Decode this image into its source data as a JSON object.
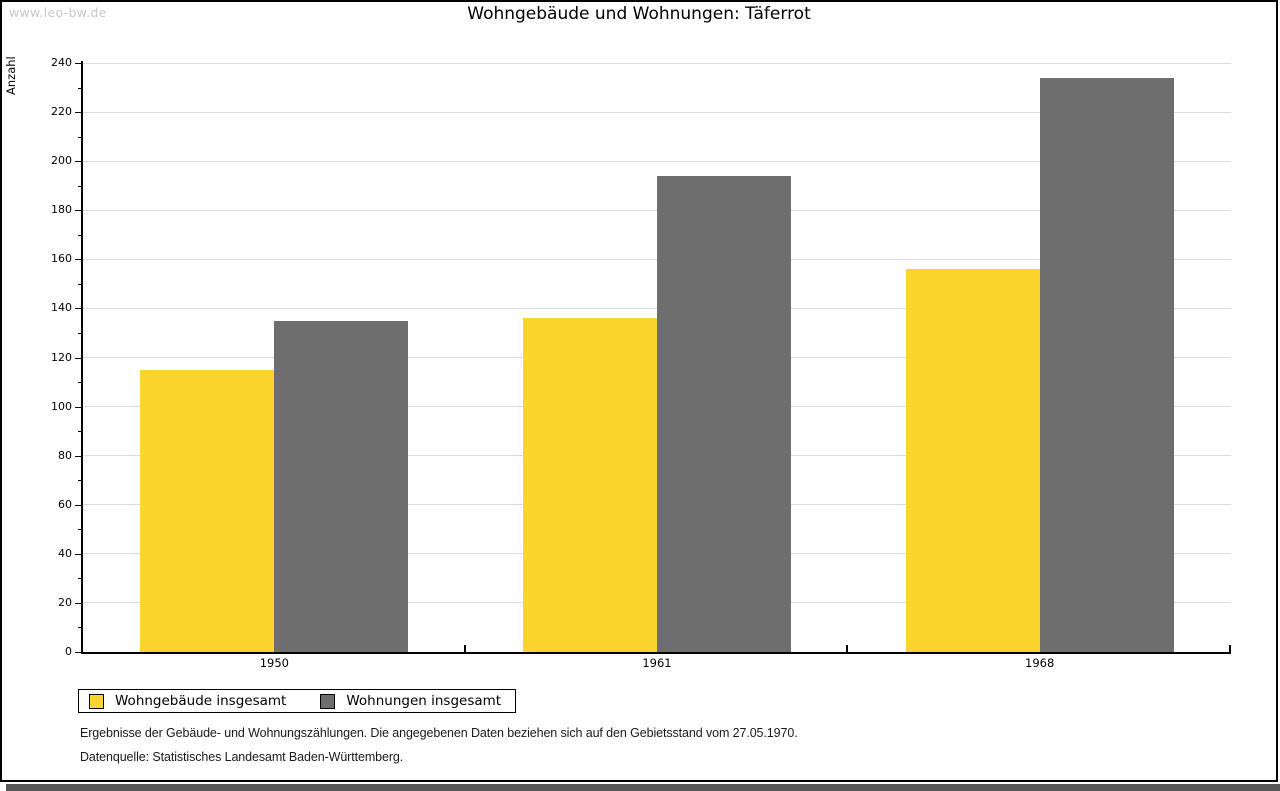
{
  "watermark": "www.leo-bw.de",
  "title": "Wohngebäude und Wohnungen: Täferrot",
  "chart_data": {
    "type": "bar",
    "title": "Wohngebäude und Wohnungen: Täferrot",
    "ylabel": "Anzahl",
    "xlabel": "",
    "categories": [
      "1950",
      "1961",
      "1968"
    ],
    "series": [
      {
        "name": "Wohngebäude insgesamt",
        "color": "#FCD42E",
        "values": [
          115,
          136,
          156
        ]
      },
      {
        "name": "Wohnungen insgesamt",
        "color": "#6E6E6E",
        "values": [
          135,
          194,
          234
        ]
      }
    ],
    "ylim": [
      0,
      240
    ],
    "ytick_step": 20,
    "yminor_step": 10,
    "grid": "horizontal major gridlines",
    "legend_position": "bottom-left",
    "colors": {
      "gridline": "#dcdcdc",
      "axis": "#000000"
    }
  },
  "footer": {
    "line1": "Ergebnisse der Gebäude- und Wohnungszählungen. Die angegebenen Daten beziehen sich auf den Gebietsstand vom 27.05.1970.",
    "line2": "Datenquelle: Statistisches Landesamt Baden-Württemberg."
  }
}
